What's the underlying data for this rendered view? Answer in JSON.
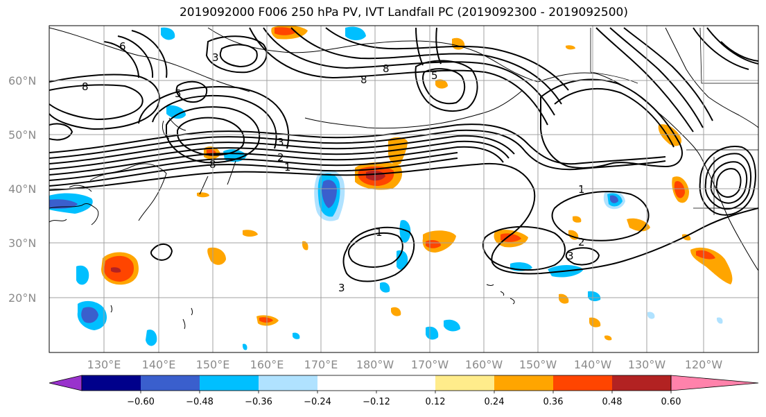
{
  "title": "2019092000 F006 250 hPa PV, IVT Landfall PC (2019092300 - 2019092500)",
  "lat_labels": [
    "60°N",
    "50°N",
    "40°N",
    "30°N",
    "20°N"
  ],
  "lon_labels": [
    "130°E",
    "140°E",
    "150°E",
    "160°E",
    "170°E",
    "180°W",
    "170°W",
    "160°W",
    "150°W",
    "140°W",
    "130°W",
    "120°W"
  ],
  "colorbar": {
    "colors": [
      "#9932cc",
      "#00008b",
      "#3a5fcd",
      "#00bfff",
      "#b0e2ff",
      "#ffffff",
      "#ffffff",
      "#ffec8b",
      "#ffa500",
      "#ff4500",
      "#b22222",
      "#ff82ab"
    ],
    "tick_labels": [
      "−0.60",
      "−0.48",
      "−0.36",
      "−0.24",
      "−0.12",
      "0.12",
      "0.24",
      "0.36",
      "0.48",
      "0.60"
    ]
  },
  "contour_labels": [
    "8",
    "8",
    "8",
    "5",
    "5",
    "6",
    "3",
    "3",
    "1",
    "2",
    "1",
    "1",
    "2",
    "3",
    "3",
    "8"
  ],
  "shading": {
    "positive_colors": [
      "#ffec8b",
      "#ffa500",
      "#ff4500",
      "#b22222"
    ],
    "negative_colors": [
      "#b0e2ff",
      "#00bfff",
      "#3a5fcd"
    ]
  }
}
